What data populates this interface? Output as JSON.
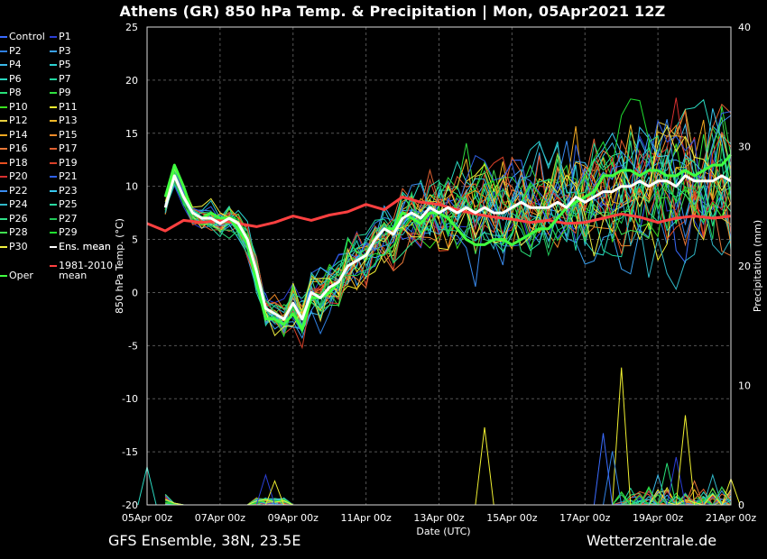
{
  "title": "Athens  (GR)  850 hPa Temp. & Precipitation | Mon, 05Apr2021 12Z",
  "footer_left": "GFS Ensemble, 38N, 23.5E",
  "footer_right": "Wetterzentrale.de",
  "chart_data": {
    "type": "line",
    "xlabel": "Date (UTC)",
    "ylabel": "850 hPa Temp. (°C)",
    "y2label": "Precipitation (mm)",
    "x_ticks": [
      "05Apr 00z",
      "07Apr 00z",
      "09Apr 00z",
      "11Apr 00z",
      "13Apr 00z",
      "15Apr 00z",
      "17Apr 00z",
      "19Apr 00z",
      "21Apr 00z"
    ],
    "x_range_days": [
      0,
      16
    ],
    "ylim": [
      -20,
      25
    ],
    "y_ticks": [
      25,
      20,
      15,
      10,
      5,
      0,
      -5,
      -10,
      -15,
      -20
    ],
    "y2lim": [
      0,
      40
    ],
    "y2_ticks": [
      40,
      30,
      20,
      10,
      0
    ],
    "grid": true,
    "legend_placement": "left",
    "legend": [
      {
        "label": "Control",
        "color": "#3a6bff"
      },
      {
        "label": "P1",
        "color": "#2b3fd6"
      },
      {
        "label": "P2",
        "color": "#2f7fe0"
      },
      {
        "label": "P3",
        "color": "#3aa0f0"
      },
      {
        "label": "P4",
        "color": "#3ab8e8"
      },
      {
        "label": "P5",
        "color": "#2ad0d0"
      },
      {
        "label": "P6",
        "color": "#2ad8c0"
      },
      {
        "label": "P7",
        "color": "#20d8a0"
      },
      {
        "label": "P8",
        "color": "#28e078"
      },
      {
        "label": "P9",
        "color": "#30e040"
      },
      {
        "label": "P10",
        "color": "#3ae020"
      },
      {
        "label": "P11",
        "color": "#f0f030"
      },
      {
        "label": "P12",
        "color": "#e8d040"
      },
      {
        "label": "P13",
        "color": "#f0b828"
      },
      {
        "label": "P14",
        "color": "#f0a820"
      },
      {
        "label": "P15",
        "color": "#f08a28"
      },
      {
        "label": "P16",
        "color": "#e87838"
      },
      {
        "label": "P17",
        "color": "#e06030"
      },
      {
        "label": "P18",
        "color": "#e85020"
      },
      {
        "label": "P19",
        "color": "#d84028"
      },
      {
        "label": "P20",
        "color": "#d83030"
      },
      {
        "label": "P21",
        "color": "#2f60e8"
      },
      {
        "label": "P22",
        "color": "#3a8cf0"
      },
      {
        "label": "P23",
        "color": "#38c8f0"
      },
      {
        "label": "P24",
        "color": "#30b8c8"
      },
      {
        "label": "P25",
        "color": "#28d8a0"
      },
      {
        "label": "P26",
        "color": "#30e088"
      },
      {
        "label": "P27",
        "color": "#20c858"
      },
      {
        "label": "P28",
        "color": "#40e050"
      },
      {
        "label": "P29",
        "color": "#20e030"
      },
      {
        "label": "P30",
        "color": "#f0f040"
      },
      {
        "label": "Ens. mean",
        "color": "#ffffff"
      },
      {
        "label": "Oper",
        "color": "#40ff40"
      },
      {
        "label": "1981-2010",
        "label2": "mean",
        "color": "#ff4040"
      }
    ],
    "ensemble_mean": {
      "days": [
        0.5,
        0.75,
        1,
        1.25,
        1.5,
        1.75,
        2,
        2.25,
        2.5,
        2.75,
        3,
        3.25,
        3.5,
        3.75,
        4,
        4.25,
        4.5,
        4.75,
        5,
        5.25,
        5.5,
        5.75,
        6,
        6.25,
        6.5,
        6.75,
        7,
        7.25,
        7.5,
        7.75,
        8,
        8.25,
        8.5,
        8.75,
        9,
        9.25,
        9.5,
        9.75,
        10,
        10.25,
        10.5,
        10.75,
        11,
        11.25,
        11.5,
        11.75,
        12,
        12.25,
        12.5,
        12.75,
        13,
        13.25,
        13.5,
        13.75,
        14,
        14.25,
        14.5,
        14.75,
        15,
        15.25,
        15.5,
        15.75,
        16
      ],
      "values": [
        8,
        11,
        9,
        7.5,
        7,
        7,
        6.5,
        7,
        6.5,
        5,
        2,
        -1.5,
        -2,
        -2.5,
        -1,
        -2.5,
        0,
        -0.5,
        0.5,
        1,
        2.5,
        3,
        3.5,
        5,
        6,
        5.5,
        7,
        7.5,
        7,
        8,
        7.5,
        8,
        7.5,
        8,
        7.5,
        8,
        7.5,
        7.5,
        8,
        8.5,
        8,
        8,
        8,
        8.5,
        8,
        9,
        8.5,
        9,
        9.5,
        9.5,
        10,
        10,
        10.5,
        10,
        10.5,
        10.5,
        10,
        11,
        10.5,
        10.5,
        10.5,
        11,
        10.5
      ]
    },
    "oper": {
      "days": [
        0.5,
        0.75,
        1,
        1.25,
        1.5,
        1.75,
        2,
        2.25,
        2.5,
        2.75,
        3,
        3.25,
        3.5,
        3.75,
        4,
        4.25,
        4.5,
        4.75,
        5,
        5.25,
        5.5,
        5.75,
        6,
        6.25,
        6.5,
        6.75,
        7,
        7.25,
        7.5,
        7.75,
        8,
        8.25,
        8.5,
        8.75,
        9,
        9.25,
        9.5,
        9.75,
        10,
        10.25,
        10.5,
        10.75,
        11,
        11.25,
        11.5,
        11.75,
        12,
        12.25,
        12.5,
        12.75,
        13,
        13.25,
        13.5,
        13.75,
        14,
        14.25,
        14.5,
        14.75,
        15,
        15.25,
        15.5,
        15.75,
        16
      ],
      "values": [
        9,
        12,
        10,
        7.5,
        7,
        7.5,
        7,
        7,
        6,
        4.5,
        1,
        -2.5,
        -2.5,
        -3,
        -2,
        -3.5,
        -0.5,
        -0.5,
        0,
        1,
        2.5,
        3,
        3.5,
        5,
        6,
        6,
        7.5,
        7,
        6.5,
        7.5,
        7.5,
        7,
        6,
        5,
        4.5,
        4.5,
        5,
        5,
        4.5,
        5,
        5.5,
        6,
        6,
        7,
        8,
        8.5,
        9,
        9.5,
        11,
        11,
        11.5,
        11.5,
        11,
        11.5,
        11.5,
        11,
        11,
        11.5,
        11,
        11.5,
        12,
        12,
        13
      ]
    },
    "climate_mean": {
      "days": [
        0,
        0.5,
        1,
        1.5,
        2,
        2.5,
        3,
        3.5,
        4,
        4.5,
        5,
        5.5,
        6,
        6.5,
        7,
        7.5,
        8,
        8.5,
        9,
        9.5,
        10,
        10.5,
        11,
        11.5,
        12,
        12.5,
        13,
        13.5,
        14,
        14.5,
        15,
        15.5,
        16
      ],
      "values": [
        6.5,
        5.8,
        6.8,
        6.6,
        6.8,
        6.5,
        6.2,
        6.6,
        7.2,
        6.8,
        7.3,
        7.6,
        8.3,
        7.8,
        9,
        8.5,
        8.3,
        7.8,
        7.4,
        7.1,
        6.9,
        6.6,
        6.8,
        6.5,
        6.6,
        7.0,
        7.4,
        7.1,
        6.6,
        7.0,
        7.2,
        7.0,
        7.2
      ]
    },
    "precip_spikes": [
      {
        "day": 9.25,
        "value_mm": 6.5,
        "color": "#f0f030"
      },
      {
        "day": 13.0,
        "value_mm": 11.5,
        "color": "#f0f030"
      },
      {
        "day": 12.75,
        "value_mm": 4.5,
        "color": "#2f7fe0"
      },
      {
        "day": 12.5,
        "value_mm": 6.0,
        "color": "#3a6bff"
      },
      {
        "day": 14.0,
        "value_mm": 2.5,
        "color": "#3ab8e8"
      },
      {
        "day": 14.25,
        "value_mm": 3.5,
        "color": "#28e078"
      },
      {
        "day": 15.0,
        "value_mm": 2.0,
        "color": "#e87838"
      },
      {
        "day": 14.5,
        "value_mm": 4.0,
        "color": "#2b3fd6"
      },
      {
        "day": 14.75,
        "value_mm": 7.5,
        "color": "#f0f030"
      },
      {
        "day": 3.25,
        "value_mm": 2.5,
        "color": "#2b3fd6"
      },
      {
        "day": 3.5,
        "value_mm": 2.0,
        "color": "#f0f030"
      },
      {
        "day": 0.0,
        "value_mm": 3.2,
        "color": "#2ad8c0"
      },
      {
        "day": 13.75,
        "value_mm": 1.5,
        "color": "#30e040"
      },
      {
        "day": 15.5,
        "value_mm": 2.5,
        "color": "#30b8c8"
      },
      {
        "day": 16.0,
        "value_mm": 2.2,
        "color": "#f0f030"
      },
      {
        "day": 15.75,
        "value_mm": 1.5,
        "color": "#20c858"
      }
    ]
  }
}
